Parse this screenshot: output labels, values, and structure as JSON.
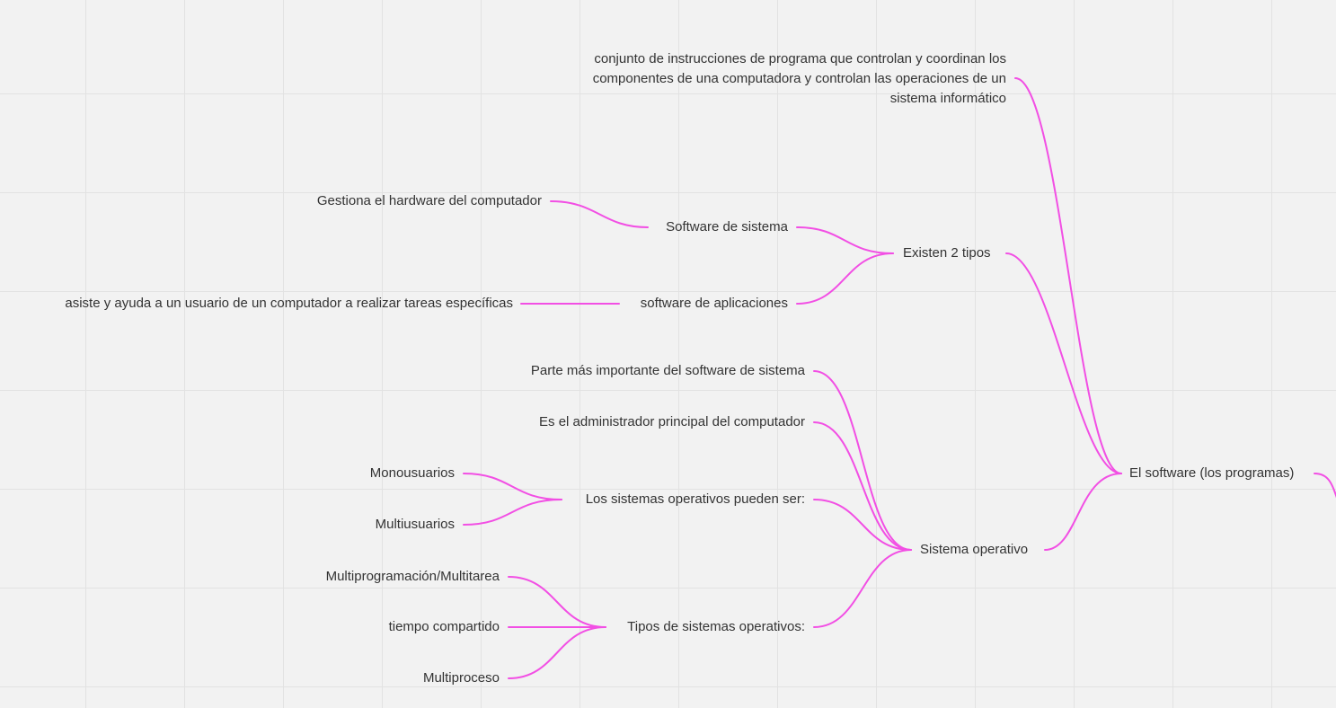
{
  "theme": {
    "connector_color": "#f24fe4",
    "background": "#f2f2f2",
    "grid_color": "#e2e2e2",
    "text_color": "#333333"
  },
  "mindmap": {
    "root": "El software (los programas)",
    "definition": "conjunto de instrucciones de programa que controlan y coordinan los componentes de una computadora y controlan las operaciones de un sistema informático",
    "existen_2_tipos": {
      "label": "Existen 2 tipos",
      "software_de_sistema": {
        "label": "Software de sistema",
        "detail": "Gestiona el hardware del computador"
      },
      "software_de_aplicaciones": {
        "label": "software de aplicaciones",
        "detail": "asiste y ayuda a un usuario de un computador a realizar tareas específicas"
      }
    },
    "sistema_operativo": {
      "label": "Sistema operativo",
      "parte_importante": "Parte más importante del software de sistema",
      "administrador": "Es el administrador principal del computador",
      "pueden_ser": {
        "label": "Los sistemas operativos pueden ser:",
        "items": [
          "Monousuarios",
          "Multiusuarios"
        ]
      },
      "tipos": {
        "label": "Tipos de sistemas operativos:",
        "items": [
          "Multiprogramación/Multitarea",
          "tiempo compartido",
          "Multiproceso"
        ]
      }
    }
  }
}
